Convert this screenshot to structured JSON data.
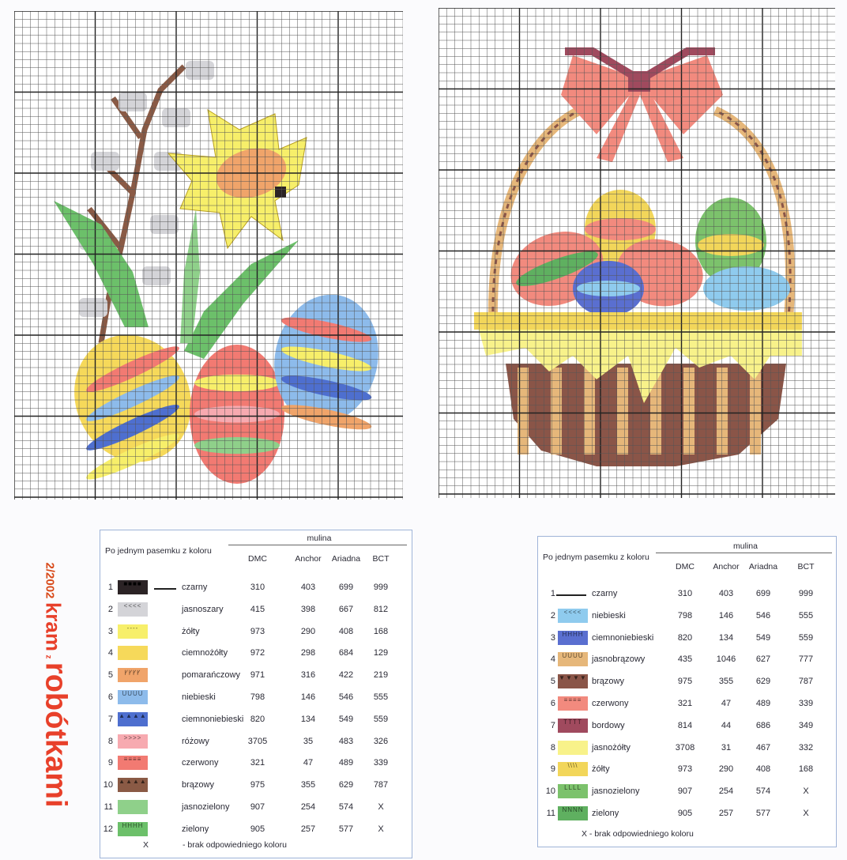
{
  "side_title": {
    "issue": "2/2002",
    "word1": "kram",
    "word2": "z",
    "word3": "robótkami"
  },
  "pattern_left": {
    "subject": "pussy willow, daffodil and Easter eggs",
    "grid_cells": "48 x 60"
  },
  "pattern_right": {
    "subject": "Easter basket with bow and eggs",
    "grid_cells": "49 x 60"
  },
  "legend_left": {
    "header": "Po jednym pasemku z koloru",
    "group": "mulina",
    "columns": [
      "DMC",
      "Anchor",
      "Ariadna",
      "BCT"
    ],
    "rows": [
      {
        "num": "1",
        "name": "czarny",
        "dmc": "310",
        "anchor": "403",
        "ariadna": "699",
        "bct": "999",
        "color": "#2b2325",
        "symbol": "■■■■",
        "line": true
      },
      {
        "num": "2",
        "name": "jasnoszary",
        "dmc": "415",
        "anchor": "398",
        "ariadna": "667",
        "bct": "812",
        "color": "#d4d4d8",
        "symbol": "<<<<"
      },
      {
        "num": "3",
        "name": "żółty",
        "dmc": "973",
        "anchor": "290",
        "ariadna": "408",
        "bct": "168",
        "color": "#f7ef6a",
        "symbol": "----"
      },
      {
        "num": "4",
        "name": "ciemnożółty",
        "dmc": "972",
        "anchor": "298",
        "ariadna": "684",
        "bct": "129",
        "color": "#f6d95a",
        "symbol": ""
      },
      {
        "num": "5",
        "name": "pomarańczowy",
        "dmc": "971",
        "anchor": "316",
        "ariadna": "422",
        "bct": "219",
        "color": "#f0a46a",
        "symbol": "ꝩꝩꝩꝩ"
      },
      {
        "num": "6",
        "name": "niebieski",
        "dmc": "798",
        "anchor": "146",
        "ariadna": "546",
        "bct": "555",
        "color": "#8dbbeb",
        "symbol": "UUUU"
      },
      {
        "num": "7",
        "name": "ciemnoniebieski",
        "dmc": "820",
        "anchor": "134",
        "ariadna": "549",
        "bct": "559",
        "color": "#4e6fcf",
        "symbol": "▲▲▲▲"
      },
      {
        "num": "8",
        "name": "różowy",
        "dmc": "3705",
        "anchor": "35",
        "ariadna": "483",
        "bct": "326",
        "color": "#f7aab0",
        "symbol": ">>>>"
      },
      {
        "num": "9",
        "name": "czerwony",
        "dmc": "321",
        "anchor": "47",
        "ariadna": "489",
        "bct": "339",
        "color": "#f27a72",
        "symbol": "≡≡≡≡"
      },
      {
        "num": "10",
        "name": "brązowy",
        "dmc": "975",
        "anchor": "355",
        "ariadna": "629",
        "bct": "787",
        "color": "#8a5a45",
        "symbol": "▲▲▲▲"
      },
      {
        "num": "11",
        "name": "jasnozielony",
        "dmc": "907",
        "anchor": "254",
        "ariadna": "574",
        "bct": "X",
        "color": "#8fd08a",
        "symbol": ""
      },
      {
        "num": "12",
        "name": "zielony",
        "dmc": "905",
        "anchor": "257",
        "ariadna": "577",
        "bct": "X",
        "color": "#6cc06a",
        "symbol": "HHHH"
      }
    ],
    "footnote_mark": "X",
    "footnote": "- brak odpowiedniego koloru"
  },
  "legend_right": {
    "header": "Po jednym pasemku z koloru",
    "group": "mulina",
    "columns": [
      "DMC",
      "Anchor",
      "Ariadna",
      "BCT"
    ],
    "rows": [
      {
        "num": "1",
        "name": "czarny",
        "dmc": "310",
        "anchor": "403",
        "ariadna": "699",
        "bct": "999",
        "color": "",
        "symbol": "",
        "line": true
      },
      {
        "num": "2",
        "name": "niebieski",
        "dmc": "798",
        "anchor": "146",
        "ariadna": "546",
        "bct": "555",
        "color": "#8fcbee",
        "symbol": "<<<<"
      },
      {
        "num": "3",
        "name": "ciemnoniebieski",
        "dmc": "820",
        "anchor": "134",
        "ariadna": "549",
        "bct": "559",
        "color": "#5a6fd0",
        "symbol": "HHHH"
      },
      {
        "num": "4",
        "name": "jasnobrązowy",
        "dmc": "435",
        "anchor": "1046",
        "ariadna": "627",
        "bct": "777",
        "color": "#e6b77a",
        "symbol": "UUUU"
      },
      {
        "num": "5",
        "name": "brązowy",
        "dmc": "975",
        "anchor": "355",
        "ariadna": "629",
        "bct": "787",
        "color": "#8a5548",
        "symbol": "▼▼▼▼"
      },
      {
        "num": "6",
        "name": "czerwony",
        "dmc": "321",
        "anchor": "47",
        "ariadna": "489",
        "bct": "339",
        "color": "#f28a7e",
        "symbol": "≡≡≡≡"
      },
      {
        "num": "7",
        "name": "bordowy",
        "dmc": "814",
        "anchor": "44",
        "ariadna": "686",
        "bct": "349",
        "color": "#a04a5e",
        "symbol": "TTTT"
      },
      {
        "num": "8",
        "name": "jasnożółty",
        "dmc": "3708",
        "anchor": "31",
        "ariadna": "467",
        "bct": "332",
        "color": "#f8f28a",
        "symbol": ""
      },
      {
        "num": "9",
        "name": "żółty",
        "dmc": "973",
        "anchor": "290",
        "ariadna": "408",
        "bct": "168",
        "color": "#f2d65a",
        "symbol": "\\\\\\\\"
      },
      {
        "num": "10",
        "name": "jasnozielony",
        "dmc": "907",
        "anchor": "254",
        "ariadna": "574",
        "bct": "X",
        "color": "#7cc26c",
        "symbol": "LLLL"
      },
      {
        "num": "11",
        "name": "zielony",
        "dmc": "905",
        "anchor": "257",
        "ariadna": "577",
        "bct": "X",
        "color": "#5fb060",
        "symbol": "NNNN"
      }
    ],
    "footnote": "X - brak odpowiedniego koloru"
  }
}
